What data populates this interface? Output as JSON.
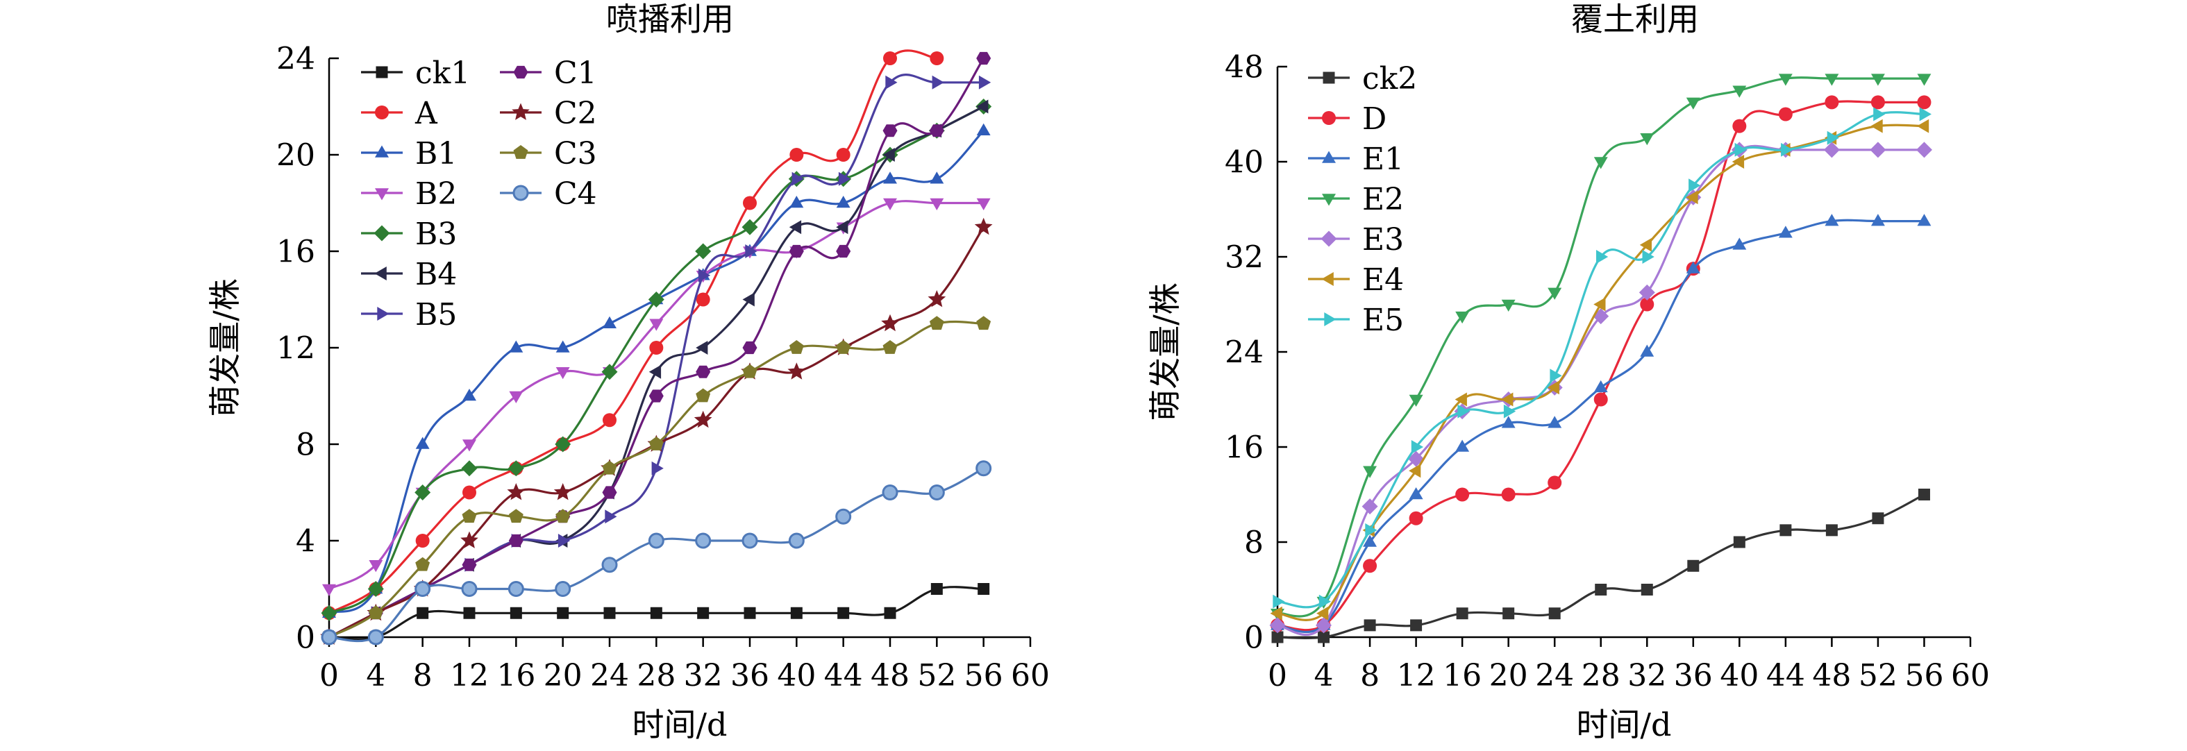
{
  "chart_data": [
    {
      "type": "line",
      "title": "喷播利用",
      "xlabel": "时间/d",
      "ylabel": "萌发量/株",
      "xlim": [
        0,
        60
      ],
      "ylim": [
        0,
        24
      ],
      "xticks": [
        0,
        4,
        8,
        12,
        16,
        20,
        24,
        28,
        32,
        36,
        40,
        44,
        48,
        52,
        56,
        60
      ],
      "yticks": [
        0,
        4,
        8,
        12,
        16,
        20,
        24
      ],
      "grid": false,
      "legend_placement": "top-left, two columns",
      "x": [
        0,
        4,
        8,
        12,
        16,
        20,
        24,
        28,
        32,
        36,
        40,
        44,
        48,
        52,
        56
      ],
      "series": [
        {
          "name": "ck1",
          "color": "#1a1a1a",
          "marker": "square",
          "values": [
            0,
            0,
            1,
            1,
            1,
            1,
            1,
            1,
            1,
            1,
            1,
            1,
            1,
            2,
            2
          ]
        },
        {
          "name": "A",
          "color": "#e8282e",
          "marker": "circle",
          "values": [
            1,
            2,
            4,
            6,
            7,
            8,
            9,
            12,
            14,
            18,
            20,
            20,
            24,
            24,
            null
          ]
        },
        {
          "name": "B1",
          "color": "#2e5bb8",
          "marker": "triangle-up",
          "values": [
            1,
            2,
            8,
            10,
            12,
            12,
            13,
            14,
            15,
            16,
            18,
            18,
            19,
            19,
            21
          ]
        },
        {
          "name": "B2",
          "color": "#b14fc5",
          "marker": "triangle-down",
          "values": [
            2,
            3,
            6,
            8,
            10,
            11,
            11,
            13,
            15,
            16,
            16,
            17,
            18,
            18,
            18
          ]
        },
        {
          "name": "B3",
          "color": "#2e7d32",
          "marker": "diamond",
          "values": [
            1,
            2,
            6,
            7,
            7,
            8,
            11,
            14,
            16,
            17,
            19,
            19,
            20,
            21,
            22
          ]
        },
        {
          "name": "B4",
          "color": "#2a2a4a",
          "marker": "triangle-left",
          "values": [
            0,
            1,
            2,
            3,
            4,
            4,
            6,
            11,
            12,
            14,
            17,
            17,
            20,
            21,
            22
          ]
        },
        {
          "name": "B5",
          "color": "#4b3fa0",
          "marker": "triangle-right",
          "values": [
            0,
            1,
            2,
            3,
            4,
            4,
            5,
            7,
            15,
            16,
            19,
            19,
            23,
            23,
            23
          ]
        },
        {
          "name": "C1",
          "color": "#6a1b7a",
          "marker": "hexagon",
          "values": [
            0,
            1,
            2,
            3,
            4,
            5,
            6,
            10,
            11,
            12,
            16,
            16,
            21,
            21,
            24
          ]
        },
        {
          "name": "C2",
          "color": "#7a1a24",
          "marker": "star",
          "values": [
            0,
            1,
            2,
            4,
            6,
            6,
            7,
            8,
            9,
            11,
            11,
            12,
            13,
            14,
            17
          ]
        },
        {
          "name": "C3",
          "color": "#7e7a2c",
          "marker": "pentagon",
          "values": [
            0,
            1,
            3,
            5,
            5,
            5,
            7,
            8,
            10,
            11,
            12,
            12,
            12,
            13,
            13
          ]
        },
        {
          "name": "C4",
          "color": "#4e79b8",
          "marker": "circle-shaded",
          "values": [
            0,
            0,
            2,
            2,
            2,
            2,
            3,
            4,
            4,
            4,
            4,
            5,
            6,
            6,
            7
          ]
        }
      ]
    },
    {
      "type": "line",
      "title": "覆土利用",
      "xlabel": "时间/d",
      "ylabel": "萌发量/株",
      "xlim": [
        0,
        60
      ],
      "ylim": [
        0,
        48
      ],
      "xticks": [
        0,
        4,
        8,
        12,
        16,
        20,
        24,
        28,
        32,
        36,
        40,
        44,
        48,
        52,
        56,
        60
      ],
      "yticks": [
        0,
        8,
        16,
        24,
        32,
        40,
        48
      ],
      "grid": false,
      "legend_placement": "top-left",
      "x": [
        0,
        4,
        8,
        12,
        16,
        20,
        24,
        28,
        32,
        36,
        40,
        44,
        48,
        52,
        56
      ],
      "series": [
        {
          "name": "ck2",
          "color": "#333333",
          "marker": "square",
          "values": [
            0,
            0,
            1,
            1,
            2,
            2,
            2,
            4,
            4,
            6,
            8,
            9,
            9,
            10,
            12
          ]
        },
        {
          "name": "D",
          "color": "#e8283a",
          "marker": "circle",
          "values": [
            1,
            1,
            6,
            10,
            12,
            12,
            13,
            20,
            28,
            31,
            43,
            44,
            45,
            45,
            45
          ]
        },
        {
          "name": "E1",
          "color": "#3a6fc4",
          "marker": "triangle-up",
          "values": [
            1,
            1,
            8,
            12,
            16,
            18,
            18,
            21,
            24,
            31,
            33,
            34,
            35,
            35,
            35
          ]
        },
        {
          "name": "E2",
          "color": "#3aa55a",
          "marker": "triangle-down",
          "values": [
            2,
            3,
            14,
            20,
            27,
            28,
            29,
            40,
            42,
            45,
            46,
            47,
            47,
            47,
            47
          ]
        },
        {
          "name": "E3",
          "color": "#a77ad6",
          "marker": "diamond",
          "values": [
            1,
            1,
            11,
            15,
            19,
            20,
            21,
            27,
            29,
            37,
            41,
            41,
            41,
            41,
            41
          ]
        },
        {
          "name": "E4",
          "color": "#c09020",
          "marker": "triangle-left",
          "values": [
            2,
            2,
            9,
            14,
            20,
            20,
            21,
            28,
            33,
            37,
            40,
            41,
            42,
            43,
            43
          ]
        },
        {
          "name": "E5",
          "color": "#3ec4cc",
          "marker": "triangle-right",
          "values": [
            3,
            3,
            9,
            16,
            19,
            19,
            22,
            32,
            32,
            38,
            41,
            41,
            42,
            44,
            44
          ]
        }
      ]
    }
  ]
}
